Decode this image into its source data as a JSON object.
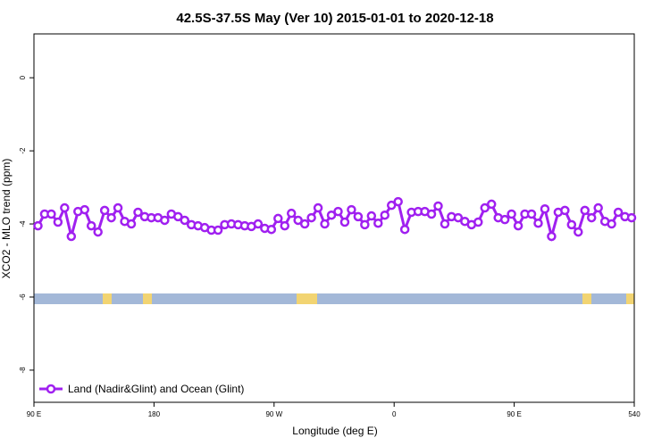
{
  "chart_data": {
    "type": "line",
    "title": "42.5S-37.5S May (Ver 10)   2015-01-01 to 2020-12-18",
    "x_label": "Longitude (deg E)",
    "y_label": "XCO2 - MLO trend (ppm)",
    "xlim": [
      90,
      540
    ],
    "ylim": [
      -8.88,
      1.2
    ],
    "xticks": [
      {
        "value": 90,
        "label": "90 E"
      },
      180,
      {
        "value": 270,
        "label": "90 W"
      },
      {
        "value": 360,
        "label": "0"
      },
      {
        "value": 450,
        "label": "90 E"
      },
      540
    ],
    "yticks": [
      0,
      -2,
      -4,
      -6,
      -8
    ],
    "legend_position": "bottom-left",
    "series": [
      {
        "name": "Land (Nadir&Glint) and Ocean (Glint)",
        "color": "#a020f0",
        "x": [
          93,
          98,
          103,
          108,
          113,
          118,
          123,
          128,
          133,
          138,
          143,
          148,
          153,
          158,
          163,
          168,
          173,
          178,
          183,
          188,
          193,
          198,
          203,
          208,
          213,
          218,
          223,
          228,
          233,
          238,
          243,
          248,
          253,
          258,
          263,
          268,
          273,
          278,
          283,
          288,
          293,
          298,
          303,
          308,
          313,
          318,
          323,
          328,
          333,
          338,
          343,
          348,
          353,
          358,
          363,
          368,
          373,
          378,
          383,
          388,
          393,
          398,
          403,
          408,
          413,
          418,
          423,
          428,
          433,
          438,
          443,
          448,
          453,
          458,
          463,
          468,
          473,
          478,
          483,
          488,
          493,
          498,
          503,
          508,
          513,
          518,
          523,
          528,
          533,
          538
        ],
        "values": [
          -4.05,
          -3.73,
          -3.73,
          -3.95,
          -3.56,
          -4.34,
          -3.66,
          -3.61,
          -4.05,
          -4.22,
          -3.63,
          -3.83,
          -3.56,
          -3.93,
          -4.0,
          -3.68,
          -3.8,
          -3.83,
          -3.83,
          -3.9,
          -3.73,
          -3.8,
          -3.9,
          -4.02,
          -4.05,
          -4.1,
          -4.17,
          -4.17,
          -4.02,
          -4.0,
          -4.02,
          -4.05,
          -4.07,
          -4.0,
          -4.12,
          -4.15,
          -3.85,
          -4.05,
          -3.71,
          -3.9,
          -4.0,
          -3.83,
          -3.56,
          -4.0,
          -3.76,
          -3.66,
          -3.95,
          -3.61,
          -3.8,
          -4.02,
          -3.78,
          -3.98,
          -3.76,
          -3.49,
          -3.39,
          -4.15,
          -3.68,
          -3.66,
          -3.66,
          -3.73,
          -3.51,
          -4.0,
          -3.8,
          -3.83,
          -3.93,
          -4.02,
          -3.95,
          -3.56,
          -3.46,
          -3.83,
          -3.88,
          -3.73,
          -4.05,
          -3.73,
          -3.73,
          -3.98,
          -3.59,
          -4.34,
          -3.68,
          -3.63,
          -4.02,
          -4.22,
          -3.63,
          -3.83,
          -3.56,
          -3.93,
          -4.0,
          -3.68,
          -3.8,
          -3.83
        ]
      }
    ]
  }
}
